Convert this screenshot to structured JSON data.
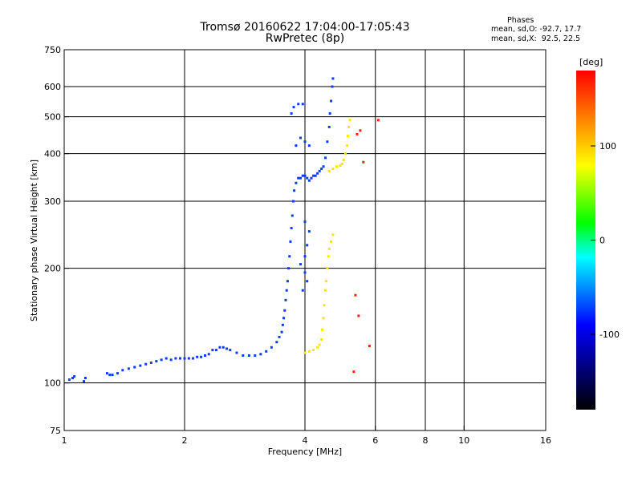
{
  "title": {
    "line1": "Tromsø 20160622 17:04:00-17:05:43",
    "line2": "RwPretec (8p)"
  },
  "phases": {
    "heading": "Phases",
    "o_mode": "mean, sd,O: -92.7, 17.7",
    "x_mode": "mean, sd,X:  92.5, 22.5"
  },
  "chart_data": {
    "type": "scatter",
    "title": "Tromsø 20160622 17:04:00-17:05:43",
    "subtitle": "RwPretec (8p)",
    "xlabel": "Frequency [MHz]",
    "ylabel": "Stationary phase Virtual Height [km]",
    "x_scale": "log",
    "y_scale": "log",
    "xlim": [
      1,
      16
    ],
    "ylim": [
      75,
      750
    ],
    "x_ticks": [
      1,
      2,
      4,
      6,
      8,
      10,
      16
    ],
    "x_tick_labels": [
      "1",
      "2",
      "4",
      "6",
      "8",
      "10",
      "16"
    ],
    "y_ticks": [
      75,
      100,
      200,
      300,
      400,
      500,
      600,
      750
    ],
    "y_tick_labels": [
      "75",
      "100",
      "200",
      "300",
      "400",
      "500",
      "600",
      "750"
    ],
    "grid": true,
    "colorbar": {
      "label": "[deg]",
      "range": [
        -180,
        180
      ],
      "ticks": [
        100,
        0,
        -100
      ],
      "tick_labels": [
        "100",
        "0",
        "-100"
      ],
      "stops": [
        "#000000",
        "#0000ff",
        "#00ffff",
        "#00ff00",
        "#ffff00",
        "#ff0000"
      ]
    },
    "series": [
      {
        "mode": "O",
        "color": "#0a3cff",
        "points": [
          [
            1.03,
            102
          ],
          [
            1.05,
            103
          ],
          [
            1.06,
            104
          ],
          [
            1.12,
            101
          ],
          [
            1.13,
            103
          ],
          [
            1.28,
            106
          ],
          [
            1.3,
            105
          ],
          [
            1.32,
            105
          ],
          [
            1.36,
            106
          ],
          [
            1.4,
            108
          ],
          [
            1.45,
            109
          ],
          [
            1.5,
            110
          ],
          [
            1.55,
            111
          ],
          [
            1.6,
            112
          ],
          [
            1.65,
            113
          ],
          [
            1.7,
            114
          ],
          [
            1.75,
            115
          ],
          [
            1.8,
            116
          ],
          [
            1.85,
            115
          ],
          [
            1.9,
            116
          ],
          [
            1.95,
            116
          ],
          [
            2.0,
            116
          ],
          [
            2.05,
            116
          ],
          [
            2.1,
            116
          ],
          [
            2.15,
            117
          ],
          [
            2.2,
            117
          ],
          [
            2.25,
            118
          ],
          [
            2.3,
            119
          ],
          [
            2.35,
            122
          ],
          [
            2.4,
            122
          ],
          [
            2.45,
            124
          ],
          [
            2.5,
            124
          ],
          [
            2.55,
            123
          ],
          [
            2.6,
            122
          ],
          [
            2.7,
            120
          ],
          [
            2.8,
            118
          ],
          [
            2.9,
            118
          ],
          [
            3.0,
            118
          ],
          [
            3.1,
            119
          ],
          [
            3.2,
            121
          ],
          [
            3.3,
            124
          ],
          [
            3.4,
            128
          ],
          [
            3.45,
            132
          ],
          [
            3.5,
            136
          ],
          [
            3.52,
            142
          ],
          [
            3.54,
            148
          ],
          [
            3.56,
            155
          ],
          [
            3.58,
            165
          ],
          [
            3.6,
            175
          ],
          [
            3.62,
            185
          ],
          [
            3.64,
            200
          ],
          [
            3.66,
            215
          ],
          [
            3.68,
            235
          ],
          [
            3.7,
            255
          ],
          [
            3.72,
            275
          ],
          [
            3.74,
            300
          ],
          [
            3.76,
            320
          ],
          [
            3.8,
            335
          ],
          [
            3.85,
            345
          ],
          [
            3.9,
            345
          ],
          [
            3.95,
            350
          ],
          [
            4.0,
            350
          ],
          [
            4.05,
            345
          ],
          [
            4.1,
            340
          ],
          [
            4.15,
            345
          ],
          [
            4.2,
            350
          ],
          [
            4.25,
            350
          ],
          [
            4.3,
            355
          ],
          [
            4.35,
            360
          ],
          [
            4.4,
            365
          ],
          [
            4.45,
            370
          ],
          [
            4.5,
            390
          ],
          [
            4.55,
            430
          ],
          [
            4.6,
            470
          ],
          [
            4.62,
            510
          ],
          [
            4.65,
            550
          ],
          [
            4.68,
            600
          ],
          [
            4.7,
            630
          ],
          [
            3.7,
            510
          ],
          [
            3.75,
            530
          ],
          [
            3.85,
            540
          ],
          [
            3.95,
            540
          ],
          [
            3.8,
            420
          ],
          [
            3.9,
            440
          ],
          [
            4.0,
            430
          ],
          [
            4.1,
            420
          ],
          [
            3.9,
            205
          ],
          [
            4.0,
            195
          ],
          [
            4.05,
            185
          ],
          [
            3.95,
            175
          ],
          [
            4.0,
            215
          ],
          [
            4.05,
            230
          ],
          [
            4.1,
            250
          ],
          [
            4.0,
            265
          ]
        ]
      },
      {
        "mode": "X",
        "color": "#ffe600",
        "points": [
          [
            4.0,
            120
          ],
          [
            4.1,
            121
          ],
          [
            4.2,
            122
          ],
          [
            4.3,
            124
          ],
          [
            4.35,
            126
          ],
          [
            4.4,
            130
          ],
          [
            4.42,
            138
          ],
          [
            4.45,
            148
          ],
          [
            4.47,
            160
          ],
          [
            4.5,
            175
          ],
          [
            4.52,
            185
          ],
          [
            4.55,
            200
          ],
          [
            4.58,
            215
          ],
          [
            4.6,
            225
          ],
          [
            4.65,
            235
          ],
          [
            4.7,
            245
          ],
          [
            4.6,
            360
          ],
          [
            4.7,
            365
          ],
          [
            4.8,
            370
          ],
          [
            4.9,
            372
          ],
          [
            4.95,
            376
          ],
          [
            5.0,
            385
          ],
          [
            5.05,
            400
          ],
          [
            5.1,
            420
          ],
          [
            5.12,
            445
          ],
          [
            5.15,
            470
          ],
          [
            5.18,
            490
          ]
        ]
      },
      {
        "mode": "scatter",
        "color": "#ff2000",
        "points": [
          [
            5.4,
            450
          ],
          [
            5.5,
            460
          ],
          [
            5.6,
            380
          ],
          [
            6.1,
            490
          ],
          [
            5.35,
            170
          ],
          [
            5.45,
            150
          ],
          [
            5.8,
            125
          ],
          [
            5.3,
            107
          ]
        ]
      }
    ]
  }
}
